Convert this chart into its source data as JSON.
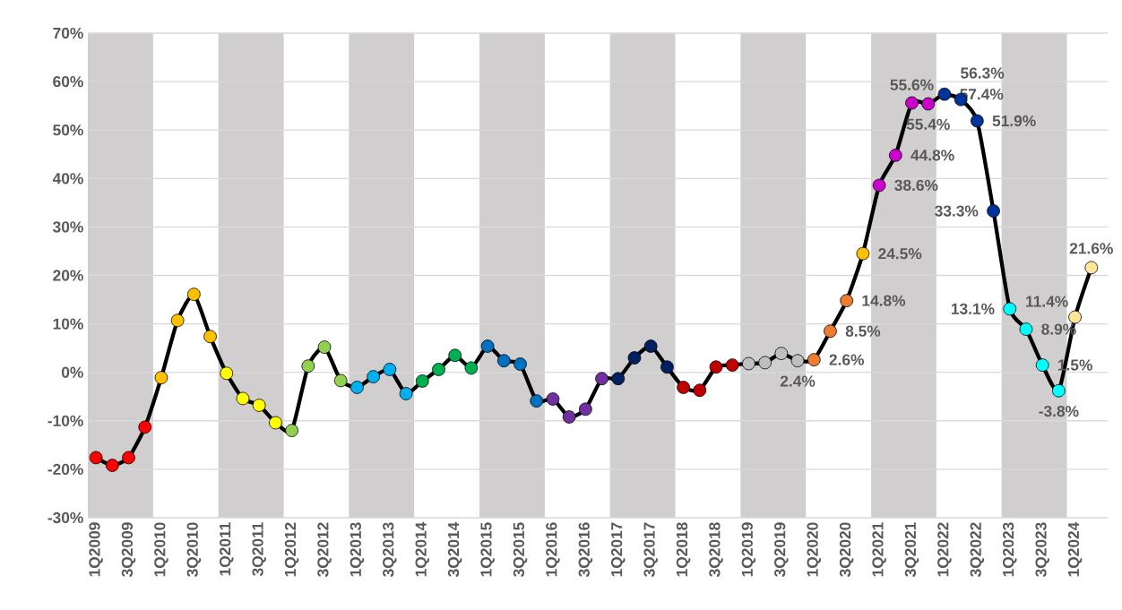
{
  "chart_data": {
    "type": "line",
    "categories": [
      "1Q2009",
      null,
      "3Q2009",
      null,
      "1Q2010",
      null,
      "3Q2010",
      null,
      "1Q2011",
      null,
      "3Q2011",
      null,
      "1Q2012",
      null,
      "3Q2012",
      null,
      "1Q2013",
      null,
      "3Q2013",
      null,
      "1Q2014",
      null,
      "3Q2014",
      null,
      "1Q2015",
      null,
      "3Q2015",
      null,
      "1Q2016",
      null,
      "3Q2016",
      null,
      "1Q2017",
      null,
      "3Q2017",
      null,
      "1Q2018",
      null,
      "3Q2018",
      null,
      "1Q2019",
      null,
      "3Q2019",
      null,
      "1Q2020",
      null,
      "3Q2020",
      null,
      "1Q2021",
      null,
      "3Q2021",
      null,
      "1Q2022",
      null,
      "3Q2022",
      null,
      "1Q2023",
      null,
      "3Q2023",
      null,
      "1Q2024",
      null
    ],
    "values": [
      -17.6,
      -19.2,
      -17.6,
      -11.3,
      -1.1,
      10.7,
      16.1,
      7.4,
      -0.2,
      -5.4,
      -6.8,
      -10.4,
      -12.0,
      1.3,
      5.2,
      -1.7,
      -3.1,
      -0.9,
      0.6,
      -4.4,
      -1.8,
      0.6,
      3.5,
      0.9,
      5.4,
      2.4,
      1.7,
      -5.9,
      -5.5,
      -9.2,
      -7.6,
      -1.3,
      -1.3,
      3.0,
      5.4,
      1.1,
      -3.1,
      -3.7,
      1.1,
      1.5,
      1.8,
      2.0,
      3.9,
      2.4,
      2.6,
      8.5,
      14.8,
      24.5,
      38.6,
      44.8,
      55.6,
      55.4,
      57.4,
      56.3,
      51.9,
      33.3,
      13.1,
      8.9,
      1.5,
      -3.8,
      11.4,
      21.6
    ],
    "color": "#000000",
    "colors": [
      "#ff0000",
      "#ff0000",
      "#ff0000",
      "#ff0000",
      "#ffc000",
      "#ffc000",
      "#ffc000",
      "#ffc000",
      "#ffff00",
      "#ffff00",
      "#ffff00",
      "#ffff00",
      "#92d050",
      "#92d050",
      "#92d050",
      "#92d050",
      "#00b0f0",
      "#00b0f0",
      "#00b0f0",
      "#00b0f0",
      "#00b050",
      "#00b050",
      "#00b050",
      "#00b050",
      "#0070c0",
      "#0070c0",
      "#0070c0",
      "#0070c0",
      "#7030a0",
      "#7030a0",
      "#7030a0",
      "#7030a0",
      "#002060",
      "#002060",
      "#002060",
      "#002060",
      "#c00000",
      "#c00000",
      "#c00000",
      "#c00000",
      "#bfbfbf",
      "#bfbfbf",
      "#bfbfbf",
      "#bfbfbf",
      "#ed7d31",
      "#ed7d31",
      "#ed7d31",
      "#ffc000",
      "#cc00cc",
      "#cc00cc",
      "#cc00cc",
      "#cc00cc",
      "#003399",
      "#003399",
      "#003399",
      "#003399",
      "#00ffff",
      "#00ffff",
      "#00ffff",
      "#00ffff",
      "#ffe699",
      "#ffe699"
    ],
    "value_labels": [
      null,
      null,
      null,
      null,
      null,
      null,
      null,
      null,
      null,
      null,
      null,
      null,
      null,
      null,
      null,
      null,
      null,
      null,
      null,
      null,
      null,
      null,
      null,
      null,
      null,
      null,
      null,
      null,
      null,
      null,
      null,
      null,
      null,
      null,
      null,
      null,
      null,
      null,
      null,
      null,
      null,
      null,
      null,
      "2.4%",
      "2.6%",
      "8.5%",
      "14.8%",
      "24.5%",
      "38.6%",
      "44.8%",
      "55.6%",
      "55.4%",
      "57.4%",
      "56.3%",
      "51.9%",
      "33.3%",
      "13.1%",
      "8.9%",
      "1.5%",
      "-3.8%",
      "11.4%",
      "21.6%"
    ],
    "ylim": [
      -30,
      70
    ],
    "yticks": [
      {
        "value": -30,
        "label": "-30%"
      },
      {
        "value": -20,
        "label": "-20%"
      },
      {
        "value": -10,
        "label": "-10%"
      },
      {
        "value": 0,
        "label": "0%"
      },
      {
        "value": 10,
        "label": "10%"
      },
      {
        "value": 20,
        "label": "20%"
      },
      {
        "value": 30,
        "label": "30%"
      },
      {
        "value": 40,
        "label": "40%"
      },
      {
        "value": 50,
        "label": "50%"
      },
      {
        "value": 60,
        "label": "60%"
      },
      {
        "value": 70,
        "label": "70%"
      }
    ],
    "bands": [
      {
        "axis": "x",
        "from": "1Q2009",
        "to": "1Q2010",
        "color": "#d0cece"
      },
      {
        "axis": "x",
        "from": "1Q2011",
        "to": "1Q2012",
        "color": "#d0cece"
      },
      {
        "axis": "x",
        "from": "1Q2013",
        "to": "1Q2014",
        "color": "#d0cece"
      },
      {
        "axis": "x",
        "from": "1Q2015",
        "to": "1Q2016",
        "color": "#d0cece"
      },
      {
        "axis": "x",
        "from": "1Q2017",
        "to": "1Q2018",
        "color": "#d0cece"
      },
      {
        "axis": "x",
        "from": "1Q2019",
        "to": "1Q2020",
        "color": "#d0cece"
      },
      {
        "axis": "x",
        "from": "1Q2021",
        "to": "1Q2022",
        "color": "#d0cece"
      },
      {
        "axis": "x",
        "from": "1Q2023",
        "to": "1Q2024",
        "color": "#d0cece"
      }
    ],
    "grid": "y",
    "legend": false,
    "marker": "circle",
    "line_style": "solid"
  }
}
